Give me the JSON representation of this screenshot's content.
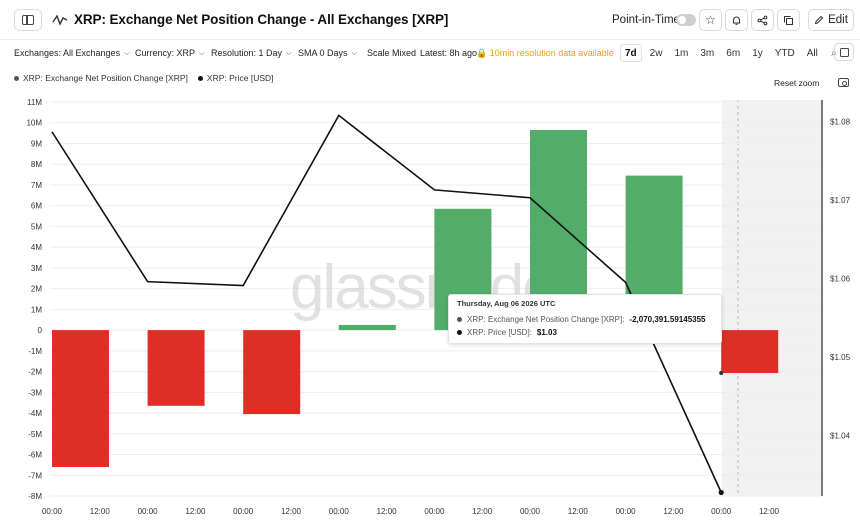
{
  "header": {
    "title": "XRP: Exchange Net Position Change - All Exchanges [XRP]",
    "point_in_time_label": "Point-in-Time",
    "point_in_time_enabled": false,
    "edit_label": "Edit",
    "icons": [
      "sidebar-toggle-icon",
      "chart-line-icon",
      "star-icon",
      "bell-icon",
      "share-icon",
      "copy-icon",
      "edit-icon"
    ]
  },
  "toolbar": {
    "exchanges": "Exchanges: All Exchanges",
    "currency": "Currency: XRP",
    "resolution": "Resolution: 1 Day",
    "sma": "SMA 0 Days",
    "scale": "Scale Mixed",
    "latest": "Latest: 8h ago",
    "notice": "10min resolution data available",
    "ranges": [
      "7d",
      "2w",
      "1m",
      "3m",
      "6m",
      "1y",
      "YTD",
      "All"
    ],
    "active_range": "7d"
  },
  "legend": {
    "items": [
      {
        "label": "XRP: Exchange Net Position Change [XRP]",
        "color": "#555555"
      },
      {
        "label": "XRP: Price [USD]",
        "color": "#111111"
      }
    ],
    "reset_zoom": "Reset zoom"
  },
  "watermark": "glassnode",
  "tooltip": {
    "date": "Thursday, Aug 06 2026 UTC",
    "rows": [
      {
        "label": "XRP: Exchange Net Position Change [XRP]:",
        "value": "-2,070,391.59145355",
        "color": "#555555"
      },
      {
        "label": "XRP: Price [USD]:",
        "value": "$1.03",
        "color": "#111111"
      }
    ]
  },
  "chart_data": {
    "type": "bar",
    "x_tick_labels": [
      "00:00",
      "12:00",
      "00:00",
      "12:00",
      "00:00",
      "12:00",
      "00:00",
      "12:00",
      "00:00",
      "12:00",
      "00:00",
      "12:00",
      "00:00",
      "12:00",
      "00:00",
      "12:00"
    ],
    "y_left_ticks": [
      "11M",
      "10M",
      "9M",
      "8M",
      "7M",
      "6M",
      "5M",
      "4M",
      "3M",
      "2M",
      "1M",
      "0",
      "-1M",
      "-2M",
      "-3M",
      "-4M",
      "-5M",
      "-6M",
      "-7M",
      "-8M"
    ],
    "y_left_range": [
      -8000000,
      11000000
    ],
    "y_right_ticks": [
      "$1.08",
      "$1.07",
      "$1.06",
      "$1.05",
      "$1.04"
    ],
    "y_right_range": [
      1.032,
      1.082
    ],
    "positive_color": "#52ad6b",
    "negative_color": "#de2e25",
    "line_color": "#111111",
    "series": [
      {
        "name": "XRP: Exchange Net Position Change [XRP]",
        "type": "bar",
        "values": [
          -6600000,
          -3650000,
          -4050000,
          250000,
          5850000,
          9650000,
          7450000,
          -2070391.59145355
        ]
      },
      {
        "name": "XRP: Price [USD]",
        "type": "line",
        "values": [
          1.0787,
          1.0596,
          1.0591,
          1.0808,
          1.0713,
          1.0703,
          1.0595,
          1.0327
        ]
      }
    ]
  }
}
